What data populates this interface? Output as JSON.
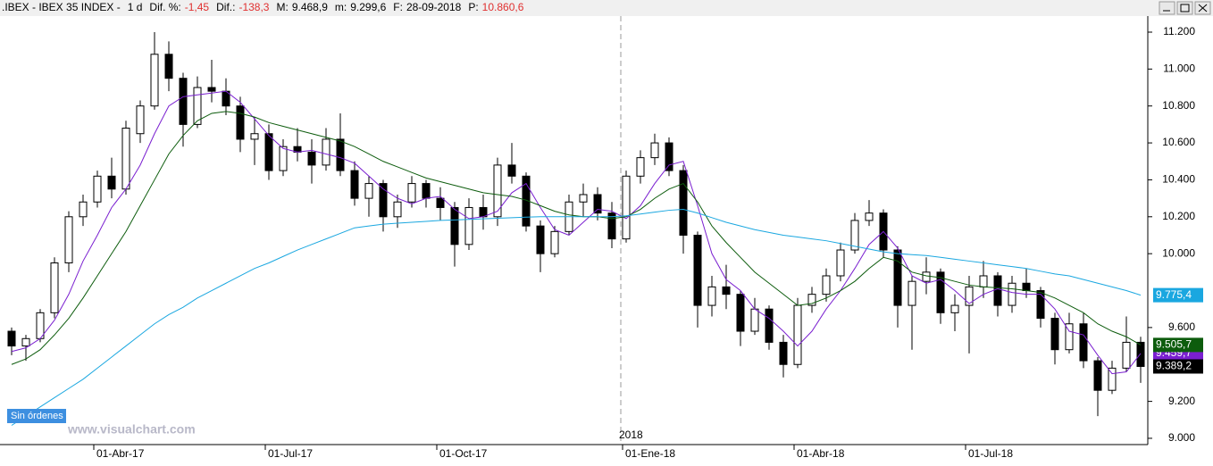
{
  "header": {
    "symbol": ".IBEX - IBEX 35 INDEX -",
    "period": "1 d",
    "items": [
      {
        "label": "Dif. %:",
        "value": "-1,45",
        "color": "#e03030"
      },
      {
        "label": "Dif.:",
        "value": "-138,3",
        "color": "#e03030"
      },
      {
        "label": "M:",
        "value": "9.468,9",
        "color": "#000000"
      },
      {
        "label": "m:",
        "value": "9.299,6",
        "color": "#000000"
      },
      {
        "label": "F:",
        "value": "28-09-2018",
        "color": "#000000"
      },
      {
        "label": "P:",
        "value": "10.860,6",
        "color": "#e03030"
      }
    ]
  },
  "orders_badge": "Sin órdenes",
  "watermark": "www.visualchart.com",
  "chart_data": {
    "type": "candlestick",
    "categories": [
      null,
      null,
      null,
      null,
      null,
      null,
      "01-Abr-17",
      null,
      null,
      null,
      null,
      null,
      null,
      null,
      null,
      null,
      null,
      null,
      "01-Jul-17",
      null,
      null,
      null,
      null,
      null,
      null,
      null,
      null,
      null,
      null,
      null,
      "01-Oct-17",
      null,
      null,
      null,
      null,
      null,
      null,
      null,
      null,
      null,
      null,
      null,
      null,
      "01-Ene-18",
      null,
      null,
      null,
      null,
      null,
      null,
      null,
      null,
      null,
      null,
      null,
      "01-Abr-18",
      null,
      null,
      null,
      null,
      null,
      null,
      null,
      null,
      null,
      null,
      null,
      "01-Jul-18",
      null,
      null,
      null,
      null,
      null,
      null,
      null,
      null,
      null,
      null,
      null,
      null
    ],
    "year_marker": {
      "index": 43,
      "label": "2018"
    },
    "open": [
      9580,
      9500,
      9540,
      9680,
      9950,
      10200,
      10280,
      10420,
      10350,
      10650,
      10800,
      11080,
      10950,
      10700,
      10900,
      10880,
      10800,
      10620,
      10650,
      10450,
      10580,
      10550,
      10480,
      10620,
      10450,
      10300,
      10380,
      10200,
      10280,
      10380,
      10300,
      10250,
      10050,
      10250,
      10200,
      10480,
      10420,
      10150,
      10000,
      10120,
      10280,
      10320,
      10220,
      10080,
      10420,
      10520,
      10600,
      10450,
      10100,
      9720,
      9820,
      9780,
      9580,
      9700,
      9520,
      9400,
      9720,
      9780,
      9880,
      10020,
      10180,
      10220,
      10020,
      9720,
      9850,
      9900,
      9680,
      9720,
      9820,
      9880,
      9720,
      9840,
      9800,
      9650,
      9480,
      9620,
      9420,
      9260,
      9380,
      9520
    ],
    "high": [
      9600,
      9560,
      9700,
      9980,
      10230,
      10320,
      10450,
      10520,
      10720,
      10830,
      11200,
      11150,
      10980,
      10960,
      11050,
      10950,
      10850,
      10740,
      10700,
      10620,
      10680,
      10620,
      10680,
      10760,
      10500,
      10420,
      10400,
      10320,
      10420,
      10400,
      10360,
      10280,
      10300,
      10320,
      10520,
      10600,
      10440,
      10180,
      10150,
      10320,
      10380,
      10360,
      10280,
      10450,
      10560,
      10650,
      10630,
      10480,
      10120,
      9880,
      9940,
      9800,
      9760,
      9720,
      9560,
      9760,
      9820,
      9920,
      10060,
      10220,
      10290,
      10240,
      10040,
      9880,
      9980,
      9920,
      9780,
      9880,
      9960,
      9900,
      9880,
      9920,
      9820,
      9680,
      9680,
      9680,
      9440,
      9420,
      9660,
      9550
    ],
    "low": [
      9450,
      9420,
      9520,
      9650,
      9900,
      10150,
      10250,
      10300,
      10320,
      10600,
      10780,
      10880,
      10580,
      10680,
      10820,
      10750,
      10550,
      10480,
      10400,
      10420,
      10500,
      10380,
      10450,
      10420,
      10260,
      10200,
      10120,
      10140,
      10250,
      10250,
      10180,
      9930,
      10020,
      10130,
      10150,
      10380,
      10120,
      9900,
      9980,
      10100,
      10200,
      10180,
      10030,
      10060,
      10380,
      10480,
      10420,
      10000,
      9600,
      9660,
      9700,
      9500,
      9560,
      9480,
      9330,
      9380,
      9680,
      9740,
      9850,
      10000,
      10150,
      9980,
      9600,
      9480,
      9780,
      9620,
      9580,
      9460,
      9760,
      9660,
      9680,
      9760,
      9600,
      9400,
      9460,
      9380,
      9120,
      9240,
      9360,
      9300
    ],
    "close": [
      9500,
      9540,
      9680,
      9950,
      10200,
      10280,
      10420,
      10350,
      10680,
      10800,
      11080,
      10950,
      10700,
      10900,
      10880,
      10800,
      10620,
      10650,
      10450,
      10580,
      10550,
      10480,
      10620,
      10450,
      10300,
      10380,
      10200,
      10280,
      10380,
      10300,
      10250,
      10050,
      10250,
      10200,
      10480,
      10420,
      10150,
      10000,
      10120,
      10280,
      10320,
      10220,
      10080,
      10420,
      10520,
      10600,
      10450,
      10100,
      9720,
      9820,
      9780,
      9580,
      9700,
      9520,
      9400,
      9720,
      9780,
      9880,
      10020,
      10180,
      10220,
      10020,
      9720,
      9850,
      9900,
      9680,
      9720,
      9820,
      9880,
      9720,
      9840,
      9800,
      9650,
      9480,
      9620,
      9420,
      9260,
      9380,
      9520,
      9389.2
    ],
    "close_label": "9.389,2",
    "up_color": "#ffffff",
    "down_color": "#000000",
    "lines": [
      {
        "color": "#7a1fd0",
        "last_label": "9.459,7",
        "values": [
          9470,
          9490,
          9540,
          9640,
          9780,
          9960,
          10100,
          10250,
          10350,
          10480,
          10650,
          10800,
          10850,
          10860,
          10870,
          10880,
          10820,
          10730,
          10640,
          10570,
          10550,
          10560,
          10540,
          10520,
          10490,
          10420,
          10350,
          10300,
          10270,
          10300,
          10310,
          10240,
          10190,
          10200,
          10230,
          10330,
          10380,
          10250,
          10130,
          10100,
          10170,
          10240,
          10230,
          10190,
          10260,
          10380,
          10480,
          10500,
          10260,
          10000,
          9860,
          9800,
          9700,
          9650,
          9580,
          9500,
          9580,
          9700,
          9800,
          9920,
          10050,
          10120,
          10030,
          9880,
          9840,
          9860,
          9800,
          9730,
          9780,
          9810,
          9790,
          9780,
          9780,
          9700,
          9580,
          9560,
          9450,
          9350,
          9360,
          9459.7
        ]
      },
      {
        "color": "#0d5c0d",
        "last_label": "9.505,7",
        "values": [
          9400,
          9430,
          9480,
          9560,
          9650,
          9760,
          9880,
          10000,
          10120,
          10260,
          10400,
          10540,
          10640,
          10720,
          10760,
          10770,
          10760,
          10740,
          10710,
          10690,
          10670,
          10650,
          10630,
          10610,
          10580,
          10540,
          10500,
          10470,
          10440,
          10410,
          10390,
          10370,
          10350,
          10330,
          10320,
          10310,
          10290,
          10260,
          10230,
          10210,
          10200,
          10200,
          10190,
          10200,
          10240,
          10300,
          10350,
          10380,
          10280,
          10150,
          10060,
          9980,
          9900,
          9840,
          9780,
          9720,
          9730,
          9760,
          9800,
          9850,
          9920,
          9980,
          9960,
          9900,
          9880,
          9870,
          9850,
          9830,
          9820,
          9815,
          9810,
          9800,
          9790,
          9760,
          9720,
          9680,
          9620,
          9580,
          9550,
          9505.7
        ]
      },
      {
        "color": "#1aa7e0",
        "last_label": "9.775,4",
        "values": [
          9070,
          9120,
          9170,
          9220,
          9270,
          9320,
          9380,
          9440,
          9500,
          9560,
          9620,
          9670,
          9710,
          9760,
          9800,
          9840,
          9880,
          9920,
          9950,
          9985,
          10020,
          10050,
          10080,
          10110,
          10140,
          10150,
          10160,
          10165,
          10170,
          10175,
          10180,
          10183,
          10186,
          10189,
          10192,
          10195,
          10198,
          10200,
          10200,
          10200,
          10200,
          10200,
          10200,
          10205,
          10215,
          10225,
          10235,
          10240,
          10220,
          10195,
          10170,
          10150,
          10130,
          10115,
          10100,
          10090,
          10080,
          10070,
          10055,
          10040,
          10025,
          10010,
          10000,
          9995,
          9990,
          9980,
          9970,
          9960,
          9950,
          9940,
          9930,
          9920,
          9905,
          9890,
          9880,
          9860,
          9840,
          9820,
          9800,
          9775.4
        ]
      }
    ],
    "ylim": [
      8966,
      11287
    ],
    "yticks": [
      {
        "value": 9000,
        "label": "9.000"
      },
      {
        "value": 9200,
        "label": "9.200"
      },
      {
        "value": 9600,
        "label": "9.600"
      },
      {
        "value": 10000,
        "label": "10.000"
      },
      {
        "value": 10200,
        "label": "10.200"
      },
      {
        "value": 10400,
        "label": "10.400"
      },
      {
        "value": 10600,
        "label": "10.600"
      },
      {
        "value": 10800,
        "label": "10.800"
      },
      {
        "value": 11000,
        "label": "11.000"
      },
      {
        "value": 11200,
        "label": "11.200"
      }
    ]
  }
}
